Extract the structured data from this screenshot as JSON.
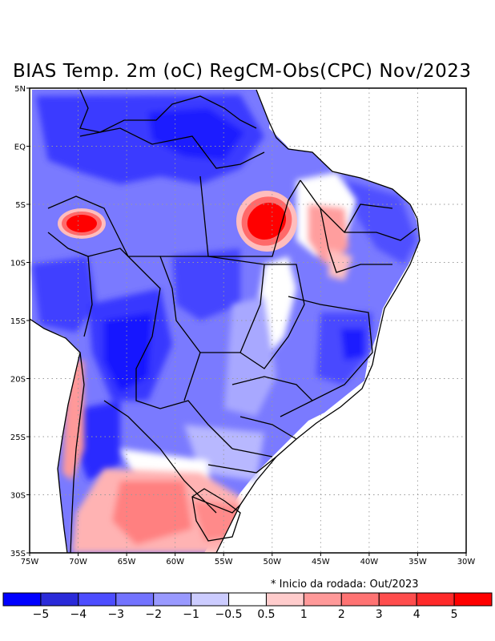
{
  "title": "BIAS Temp. 2m (oC) RegCM-Obs(CPC) Nov/2023",
  "note": "* Inicio da rodada: Out/2023",
  "map": {
    "lon_range": [
      -75,
      -30
    ],
    "lat_range": [
      -35,
      5
    ],
    "lon_labels": [
      "75W",
      "70W",
      "65W",
      "60W",
      "55W",
      "50W",
      "45W",
      "40W",
      "35W",
      "30W"
    ],
    "lat_labels": [
      "5N",
      "EQ",
      "5S",
      "10S",
      "15S",
      "20S",
      "25S",
      "30S",
      "35S"
    ]
  },
  "colorbar": {
    "colors": [
      "#0000ff",
      "#2a2ad9",
      "#4d4dff",
      "#7373ff",
      "#9999ff",
      "#ccccff",
      "#ffffff",
      "#ffcccc",
      "#ff9999",
      "#ff7373",
      "#ff4d4d",
      "#ff2a2a",
      "#ff0000"
    ],
    "labels": [
      "−5",
      "−4",
      "−3",
      "−2",
      "−1",
      "−0.5",
      "0.5",
      "1",
      "2",
      "3",
      "4",
      "5"
    ]
  },
  "fields": {
    "palette": {
      "deep_blue": "#1a1aff",
      "blue": "#3d3dff",
      "mid_blue": "#6666ff",
      "light_blue": "#9b9bff",
      "pale_blue": "#cfcfff",
      "white": "#ffffff",
      "pink": "#ffcaca",
      "light_red": "#ff9999",
      "red": "#ff5a5a",
      "deep_red": "#ff0000"
    }
  }
}
